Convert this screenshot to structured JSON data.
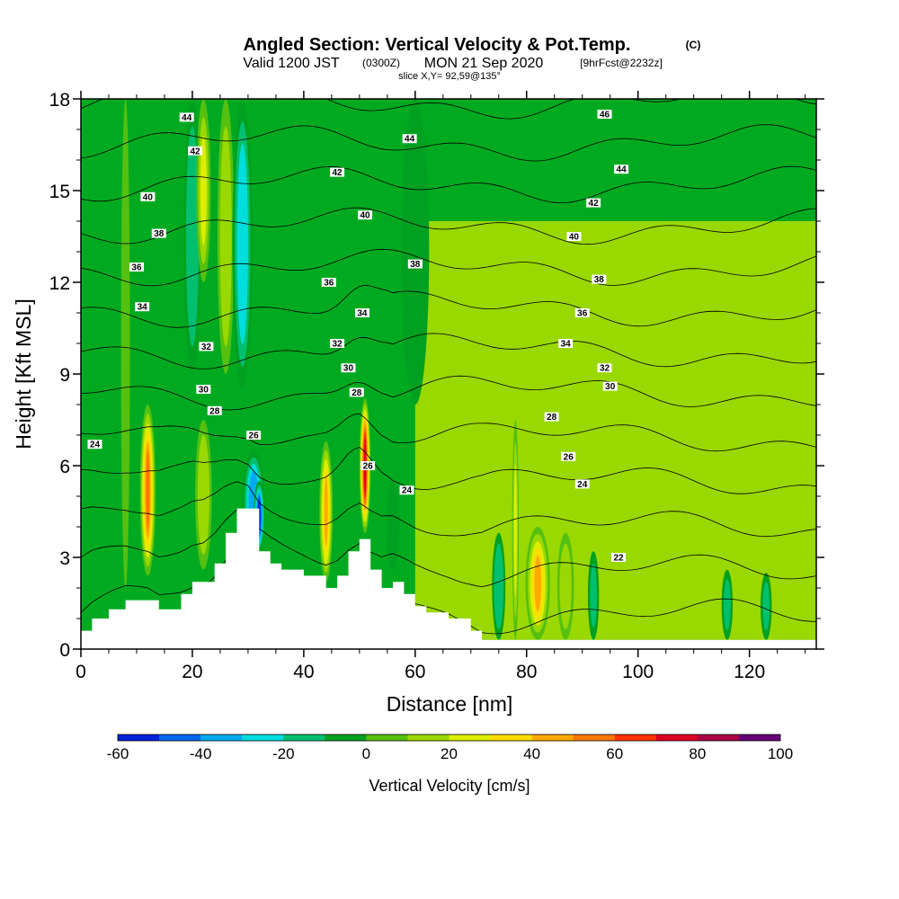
{
  "title": {
    "main": "Angled Section: Vertical Velocity & Pot.Temp.",
    "main_suffix": "(C)",
    "valid_a": "Valid 1200 JST",
    "valid_b": "(0300Z)",
    "valid_c": "MON 21 Sep 2020",
    "valid_d": "[9hrFcst@2232z]",
    "slice": "slice X,Y= 92,59@135°"
  },
  "chart_data": {
    "type": "heatmap",
    "xlabel": "Distance [nm]",
    "ylabel": "Height [Kft MSL]",
    "xlim": [
      0,
      132
    ],
    "ylim": [
      0,
      18
    ],
    "x_ticks": [
      "0",
      "20",
      "40",
      "60",
      "80",
      "100",
      "120"
    ],
    "y_ticks": [
      "0",
      "3",
      "6",
      "9",
      "12",
      "15",
      "18"
    ],
    "colorbar": {
      "label": "Vertical Velocity [cm/s]",
      "range": [
        -60,
        100
      ],
      "tick_labels": [
        "-60",
        "-40",
        "-20",
        "0",
        "20",
        "40",
        "60",
        "80",
        "100"
      ],
      "colors": [
        "#0022dd",
        "#0066ee",
        "#00aaee",
        "#00dddd",
        "#00c070",
        "#00a020",
        "#55c010",
        "#99d800",
        "#ddee00",
        "#ffdd00",
        "#ffaa00",
        "#ff7700",
        "#ff3300",
        "#dd0022",
        "#aa0044",
        "#660077"
      ]
    },
    "background_color": "#00aa20",
    "terrain_color": "#ffffff",
    "terrain_profile": {
      "x": [
        0,
        2,
        5,
        8,
        12,
        14,
        18,
        20,
        22,
        24,
        26,
        28,
        30,
        32,
        34,
        36,
        40,
        44,
        46,
        48,
        50,
        52,
        54,
        56,
        58,
        60,
        62,
        66,
        70,
        72,
        132
      ],
      "y": [
        0.6,
        1.0,
        1.3,
        1.6,
        1.6,
        1.3,
        1.8,
        2.2,
        2.2,
        2.8,
        3.8,
        4.6,
        4.6,
        3.2,
        2.8,
        2.6,
        2.4,
        2.0,
        2.4,
        3.2,
        3.6,
        2.6,
        2.0,
        2.2,
        1.8,
        1.4,
        1.2,
        1.0,
        0.6,
        0.3,
        0.3
      ]
    },
    "velocity_features": [
      {
        "x": 12,
        "y0": 2.4,
        "y1": 8.0,
        "half_width": 1.4,
        "value": 55
      },
      {
        "x": 22,
        "y0": 2.6,
        "y1": 7.5,
        "half_width": 1.5,
        "value": 22
      },
      {
        "x": 20,
        "y0": 9.0,
        "y1": 18.0,
        "half_width": 1.6,
        "value": -25
      },
      {
        "x": 22,
        "y0": 12.0,
        "y1": 18.0,
        "half_width": 1.3,
        "value": 25
      },
      {
        "x": 26,
        "y0": 9.0,
        "y1": 18.0,
        "half_width": 1.5,
        "value": 22
      },
      {
        "x": 29,
        "y0": 8.5,
        "y1": 18.0,
        "half_width": 1.8,
        "value": -32
      },
      {
        "x": 31,
        "y0": 3.0,
        "y1": 6.5,
        "half_width": 2.0,
        "value": -42
      },
      {
        "x": 32,
        "y0": 3.2,
        "y1": 5.5,
        "half_width": 1.0,
        "value": -58
      },
      {
        "x": 44,
        "y0": 2.2,
        "y1": 6.8,
        "half_width": 1.2,
        "value": 50
      },
      {
        "x": 51,
        "y0": 3.8,
        "y1": 8.2,
        "half_width": 1.0,
        "value": 80
      },
      {
        "x": 56,
        "y0": 2.6,
        "y1": 5.5,
        "half_width": 1.2,
        "value": -15
      },
      {
        "x": 75,
        "y0": 0.3,
        "y1": 3.8,
        "half_width": 1.2,
        "value": -25
      },
      {
        "x": 78,
        "y0": 0.3,
        "y1": 7.5,
        "half_width": 0.6,
        "value": 30
      },
      {
        "x": 82,
        "y0": 0.3,
        "y1": 4.0,
        "half_width": 2.2,
        "value": 45
      },
      {
        "x": 87,
        "y0": 0.3,
        "y1": 3.8,
        "half_width": 1.5,
        "value": 22
      },
      {
        "x": 92,
        "y0": 0.3,
        "y1": 3.2,
        "half_width": 1.0,
        "value": -20
      },
      {
        "x": 116,
        "y0": 0.3,
        "y1": 2.6,
        "half_width": 1.0,
        "value": -20
      },
      {
        "x": 123,
        "y0": 0.3,
        "y1": 2.5,
        "half_width": 1.0,
        "value": -20
      },
      {
        "x": 8,
        "y0": 2.0,
        "y1": 18.0,
        "half_width": 0.8,
        "value": 12
      },
      {
        "x": 60,
        "y0": 8.0,
        "y1": 18.0,
        "half_width": 2.5,
        "value": -12
      }
    ],
    "light_region": {
      "x0": 60,
      "x1": 132,
      "y0": 0.3,
      "y1": 14.0,
      "value": 10
    },
    "theta_contours": {
      "levels": [
        22,
        24,
        26,
        28,
        30,
        32,
        34,
        36,
        38,
        40,
        42,
        44,
        46
      ],
      "labels": [
        {
          "text": "44",
          "x": 19,
          "y": 17.4
        },
        {
          "text": "42",
          "x": 20.5,
          "y": 16.3
        },
        {
          "text": "40",
          "x": 12,
          "y": 14.8
        },
        {
          "text": "38",
          "x": 14,
          "y": 13.6
        },
        {
          "text": "36",
          "x": 10,
          "y": 12.5
        },
        {
          "text": "34",
          "x": 11,
          "y": 11.2
        },
        {
          "text": "32",
          "x": 22.5,
          "y": 9.9
        },
        {
          "text": "30",
          "x": 22,
          "y": 8.5
        },
        {
          "text": "28",
          "x": 24,
          "y": 7.8
        },
        {
          "text": "26",
          "x": 31,
          "y": 7.0
        },
        {
          "text": "24",
          "x": 2.5,
          "y": 6.7
        },
        {
          "text": "44",
          "x": 59,
          "y": 16.7
        },
        {
          "text": "42",
          "x": 46,
          "y": 15.6
        },
        {
          "text": "40",
          "x": 51,
          "y": 14.2
        },
        {
          "text": "38",
          "x": 60,
          "y": 12.6
        },
        {
          "text": "36",
          "x": 44.5,
          "y": 12.0
        },
        {
          "text": "34",
          "x": 50.5,
          "y": 11.0
        },
        {
          "text": "32",
          "x": 46,
          "y": 10.0
        },
        {
          "text": "30",
          "x": 48,
          "y": 9.2
        },
        {
          "text": "28",
          "x": 49.5,
          "y": 8.4
        },
        {
          "text": "26",
          "x": 51.5,
          "y": 6.0
        },
        {
          "text": "24",
          "x": 58.5,
          "y": 5.2
        },
        {
          "text": "46",
          "x": 94,
          "y": 17.5
        },
        {
          "text": "44",
          "x": 97,
          "y": 15.7
        },
        {
          "text": "42",
          "x": 92,
          "y": 14.6
        },
        {
          "text": "40",
          "x": 88.5,
          "y": 13.5
        },
        {
          "text": "38",
          "x": 93,
          "y": 12.1
        },
        {
          "text": "36",
          "x": 90,
          "y": 11.0
        },
        {
          "text": "34",
          "x": 87,
          "y": 10.0
        },
        {
          "text": "32",
          "x": 94,
          "y": 9.2
        },
        {
          "text": "30",
          "x": 95,
          "y": 8.6
        },
        {
          "text": "28",
          "x": 84.5,
          "y": 7.6
        },
        {
          "text": "26",
          "x": 87.5,
          "y": 6.3
        },
        {
          "text": "24",
          "x": 90,
          "y": 5.4
        },
        {
          "text": "22",
          "x": 96.5,
          "y": 3.0
        }
      ]
    },
    "grid": false
  }
}
